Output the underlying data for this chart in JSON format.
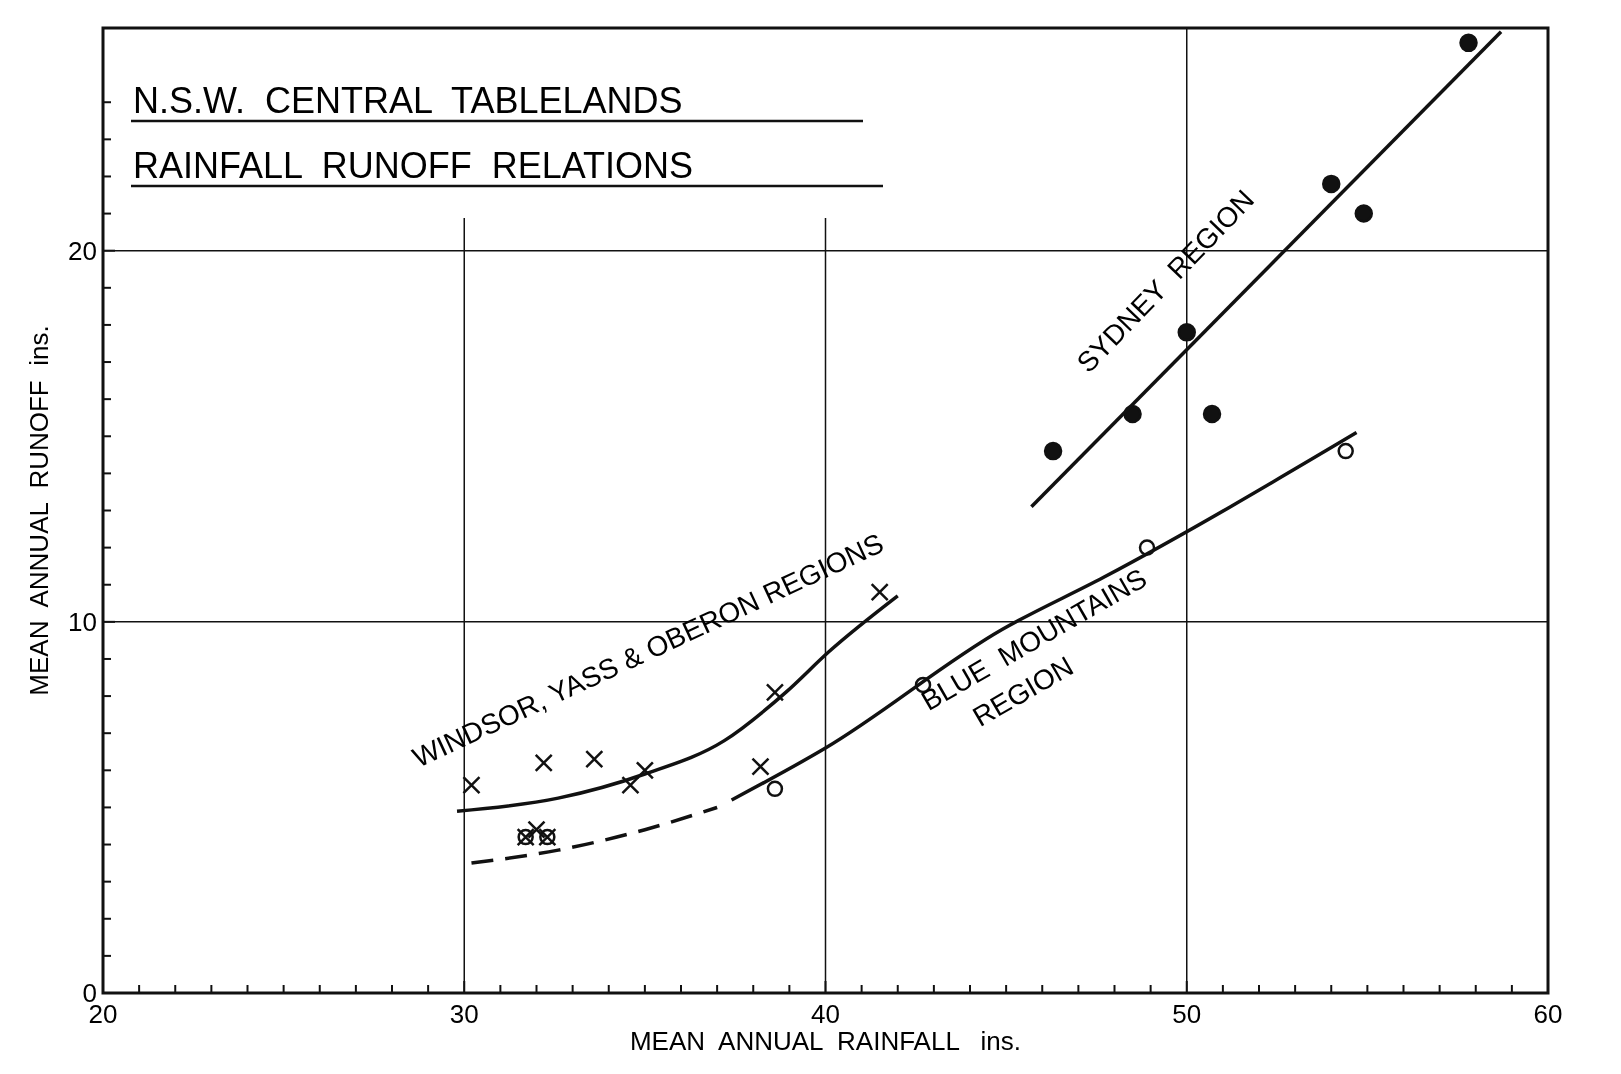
{
  "chart_data": {
    "type": "scatter",
    "title": "N.S.W.  CENTRAL  TABLELANDS",
    "subtitle": "RAINFALL  RUNOFF  RELATIONS",
    "xlabel": "MEAN  ANNUAL  RAINFALL   ins.",
    "ylabel": "MEAN  ANNUAL  RUNOFF  ins.",
    "xlim": [
      20,
      60
    ],
    "ylim": [
      0,
      26
    ],
    "xticks": [
      20,
      {
        "value": 21,
        "label": null
      },
      {
        "value": 22,
        "label": null
      },
      {
        "value": 23,
        "label": null
      },
      {
        "value": 24,
        "label": null
      },
      {
        "value": 25,
        "label": null
      },
      {
        "value": 26,
        "label": null
      },
      {
        "value": 27,
        "label": null
      },
      {
        "value": 28,
        "label": null
      },
      {
        "value": 29,
        "label": null
      },
      30,
      {
        "value": 31,
        "label": null
      },
      {
        "value": 32,
        "label": null
      },
      {
        "value": 33,
        "label": null
      },
      {
        "value": 34,
        "label": null
      },
      {
        "value": 35,
        "label": null
      },
      {
        "value": 36,
        "label": null
      },
      {
        "value": 37,
        "label": null
      },
      {
        "value": 38,
        "label": null
      },
      {
        "value": 39,
        "label": null
      },
      40,
      {
        "value": 41,
        "label": null
      },
      {
        "value": 42,
        "label": null
      },
      {
        "value": 43,
        "label": null
      },
      {
        "value": 44,
        "label": null
      },
      {
        "value": 45,
        "label": null
      },
      {
        "value": 46,
        "label": null
      },
      {
        "value": 47,
        "label": null
      },
      {
        "value": 48,
        "label": null
      },
      {
        "value": 49,
        "label": null
      },
      50,
      {
        "value": 51,
        "label": null
      },
      {
        "value": 52,
        "label": null
      },
      {
        "value": 53,
        "label": null
      },
      {
        "value": 54,
        "label": null
      },
      {
        "value": 55,
        "label": null
      },
      {
        "value": 56,
        "label": null
      },
      {
        "value": 57,
        "label": null
      },
      {
        "value": 58,
        "label": null
      },
      {
        "value": 59,
        "label": null
      },
      60
    ],
    "yticks": [
      0,
      {
        "value": 1,
        "label": null
      },
      {
        "value": 2,
        "label": null
      },
      {
        "value": 3,
        "label": null
      },
      {
        "value": 4,
        "label": null
      },
      {
        "value": 5,
        "label": null
      },
      {
        "value": 6,
        "label": null
      },
      {
        "value": 7,
        "label": null
      },
      {
        "value": 8,
        "label": null
      },
      {
        "value": 9,
        "label": null
      },
      10,
      {
        "value": 11,
        "label": null
      },
      {
        "value": 12,
        "label": null
      },
      {
        "value": 13,
        "label": null
      },
      {
        "value": 14,
        "label": null
      },
      {
        "value": 15,
        "label": null
      },
      {
        "value": 16,
        "label": null
      },
      {
        "value": 17,
        "label": null
      },
      {
        "value": 18,
        "label": null
      },
      {
        "value": 19,
        "label": null
      },
      20,
      {
        "value": 21,
        "label": null
      },
      {
        "value": 22,
        "label": null
      },
      {
        "value": 23,
        "label": null
      },
      {
        "value": 24,
        "label": null
      }
    ],
    "grid": true,
    "series": [
      {
        "marker": "circle",
        "color": "#111111",
        "x": [
          46.3,
          48.5,
          50.0,
          50.7,
          54.0,
          54.9,
          57.8
        ],
        "values": [
          14.6,
          15.6,
          17.8,
          15.6,
          21.8,
          21.0,
          25.6
        ]
      },
      {
        "marker": "circle",
        "color": "#111111",
        "x": [
          31.7,
          32.3,
          38.6,
          42.7,
          48.9,
          54.4
        ],
        "values": [
          4.2,
          4.2,
          5.5,
          8.3,
          12.0,
          14.6
        ]
      },
      {
        "marker": "cross",
        "color": "#111111",
        "x": [
          30.2,
          32.2,
          33.6,
          34.6,
          35.0,
          38.2,
          38.6,
          41.5,
          32.0,
          31.7,
          32.3
        ],
        "values": [
          5.6,
          6.2,
          6.3,
          5.6,
          6.0,
          6.1,
          8.1,
          10.8,
          4.4,
          4.2,
          4.2
        ]
      },
      {
        "type": "line",
        "line_style": "solid",
        "color": "#111111",
        "x": [
          45.7,
          58.7
        ],
        "values": [
          13.1,
          25.9
        ]
      },
      {
        "type": "line",
        "line_style": "solid",
        "color": "#111111",
        "x": [
          37.4,
          40.0,
          44.9,
          47.7,
          54.7
        ],
        "values": [
          5.2,
          6.6,
          9.8,
          11.2,
          15.1
        ]
      },
      {
        "type": "line",
        "line_style": "dashed",
        "color": "#111111",
        "x": [
          30.2,
          32.6,
          35.0,
          37.0
        ],
        "values": [
          3.5,
          3.85,
          4.4,
          5.0
        ]
      },
      {
        "type": "line",
        "line_style": "solid",
        "color": "#111111",
        "x": [
          29.8,
          32.6,
          35.0,
          37.2,
          38.9,
          40.1,
          42.0
        ],
        "values": [
          4.9,
          5.25,
          5.9,
          6.8,
          8.1,
          9.2,
          10.7
        ]
      }
    ],
    "annotations": [
      "WINDSOR, YASS & OBERON REGIONS",
      "SYDNEY  REGION",
      "BLUE  MOUNTAINS",
      "REGION"
    ]
  }
}
